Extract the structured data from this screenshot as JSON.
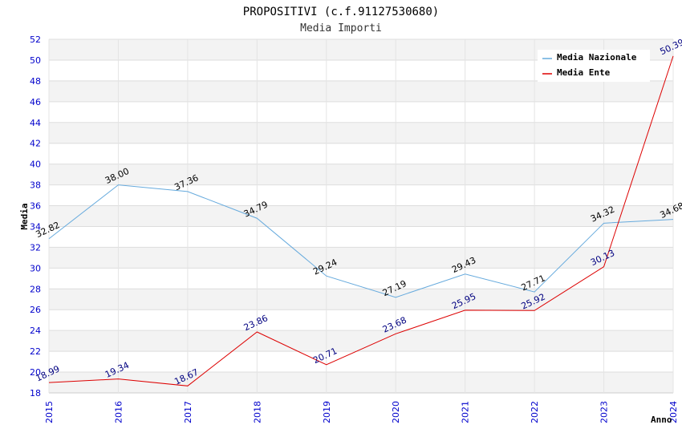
{
  "chart_data": {
    "type": "line",
    "title": "PROPOSITIVI (c.f.91127530680)",
    "subtitle": "Media Importi",
    "xlabel": "Anno",
    "ylabel": "Media",
    "ylim": [
      18,
      52
    ],
    "ystep": 2,
    "categories": [
      "2015",
      "2016",
      "2017",
      "2018",
      "2019",
      "2020",
      "2021",
      "2022",
      "2023",
      "2024"
    ],
    "series": [
      {
        "name": "Media Nazionale",
        "color": "#66aadd",
        "values": [
          32.82,
          38.0,
          37.36,
          34.79,
          29.24,
          27.19,
          29.43,
          27.71,
          34.32,
          34.68
        ],
        "labels": [
          "32.82",
          "38.00",
          "37.36",
          "34.79",
          "29.24",
          "27.19",
          "29.43",
          "27.71",
          "34.32",
          "34.68"
        ]
      },
      {
        "name": "Media Ente",
        "color": "#dd0000",
        "values": [
          18.99,
          19.34,
          18.67,
          23.86,
          20.71,
          23.68,
          25.95,
          25.92,
          30.13,
          50.39
        ],
        "labels": [
          "18.99",
          "19.34",
          "18.67",
          "23.86",
          "20.71",
          "23.68",
          "25.95",
          "25.92",
          "30.13",
          "50.39"
        ]
      }
    ],
    "legend": "top-right",
    "grid": true
  }
}
